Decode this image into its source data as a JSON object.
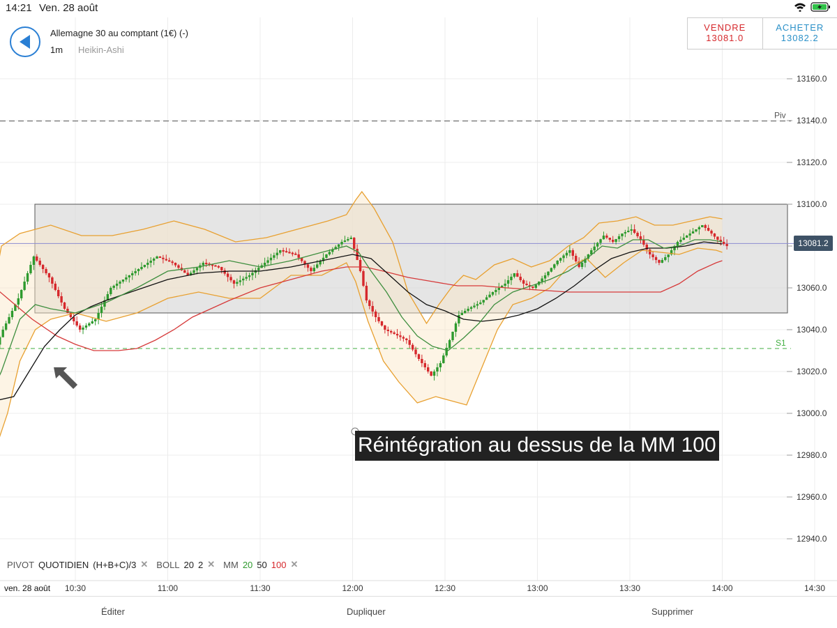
{
  "status_bar": {
    "time": "14:21",
    "date": "Ven. 28 août"
  },
  "header": {
    "instrument": "Allemagne 30 au comptant (1€) (-)",
    "timeframe": "1m",
    "chart_type": "Heikin-Ashi"
  },
  "trade": {
    "sell_label": "VENDRE",
    "sell_price": "13081.0",
    "buy_label": "ACHETER",
    "buy_price": "13082.2"
  },
  "current_price": "13081.2",
  "annotation": "Réintégration au dessus de la MM 100",
  "indicators": {
    "pivot_label": "PIVOT",
    "pivot_period": "QUOTIDIEN",
    "pivot_formula": "(H+B+C)/3",
    "boll_label": "BOLL",
    "boll_p1": "20",
    "boll_p2": "2",
    "mm_label": "MM",
    "mm_p1": "20",
    "mm_p2": "50",
    "mm_p3": "100"
  },
  "bottom_bar": {
    "edit": "Éditer",
    "duplicate": "Dupliquer",
    "delete": "Supprimer"
  },
  "colors": {
    "up": "#2e9a2e",
    "down": "#d6282c",
    "boll": "#e8a030",
    "mm20": "#3e8e3e",
    "mm50": "#111111",
    "mm100": "#d63a3a",
    "box": "#dcdcdc",
    "accent": "#2a7fd4"
  },
  "chart_data": {
    "type": "candlestick",
    "y_ticks": [
      "13160.0",
      "13140.0",
      "13120.0",
      "13100.0",
      "13080.0",
      "13060.0",
      "13040.0",
      "13020.0",
      "13000.0",
      "12980.0",
      "12960.0",
      "12940.0"
    ],
    "x_ticks": [
      "10:30",
      "11:00",
      "11:30",
      "12:00",
      "12:30",
      "13:00",
      "13:30",
      "14:00",
      "14:30"
    ],
    "x_start_label": "ven. 28 août",
    "ylim": [
      12930,
      13170
    ],
    "pivot": {
      "label": "Piv",
      "value": 13139.8
    },
    "s1": {
      "label": "S1",
      "value": 13031
    },
    "range_box": [
      13048,
      13100
    ],
    "price_line": 13081.2,
    "arrow_target": {
      "time_min": 623,
      "value": 13022
    },
    "close_path": [
      [
        600,
        13015
      ],
      [
        607,
        13040
      ],
      [
        612,
        13055
      ],
      [
        617,
        13075
      ],
      [
        622,
        13065
      ],
      [
        627,
        13050
      ],
      [
        632,
        13040
      ],
      [
        637,
        13045
      ],
      [
        642,
        13060
      ],
      [
        647,
        13065
      ],
      [
        652,
        13070
      ],
      [
        657,
        13075
      ],
      [
        662,
        13072
      ],
      [
        667,
        13066
      ],
      [
        672,
        13072
      ],
      [
        677,
        13070
      ],
      [
        682,
        13062
      ],
      [
        687,
        13066
      ],
      [
        692,
        13072
      ],
      [
        697,
        13078
      ],
      [
        702,
        13076
      ],
      [
        707,
        13068
      ],
      [
        712,
        13076
      ],
      [
        717,
        13082
      ],
      [
        720,
        13084
      ],
      [
        723,
        13068
      ],
      [
        725,
        13054
      ],
      [
        728,
        13046
      ],
      [
        731,
        13040
      ],
      [
        734,
        13038
      ],
      [
        738,
        13035
      ],
      [
        742,
        13026
      ],
      [
        746,
        13018
      ],
      [
        749,
        13024
      ],
      [
        752,
        13035
      ],
      [
        755,
        13047
      ],
      [
        758,
        13050
      ],
      [
        762,
        13053
      ],
      [
        766,
        13058
      ],
      [
        770,
        13062
      ],
      [
        773,
        13067
      ],
      [
        776,
        13062
      ],
      [
        779,
        13060
      ],
      [
        783,
        13066
      ],
      [
        787,
        13073
      ],
      [
        791,
        13078
      ],
      [
        794,
        13070
      ],
      [
        798,
        13078
      ],
      [
        802,
        13085
      ],
      [
        805,
        13082
      ],
      [
        808,
        13086
      ],
      [
        811,
        13088
      ],
      [
        814,
        13083
      ],
      [
        817,
        13076
      ],
      [
        820,
        13072
      ],
      [
        823,
        13076
      ],
      [
        826,
        13082
      ],
      [
        830,
        13086
      ],
      [
        834,
        13090
      ],
      [
        837,
        13086
      ],
      [
        839,
        13083
      ],
      [
        842,
        13080
      ]
    ],
    "bollinger_upper": [
      [
        603,
        13055
      ],
      [
        606,
        13080
      ],
      [
        612,
        13086
      ],
      [
        622,
        13090
      ],
      [
        632,
        13085
      ],
      [
        642,
        13085
      ],
      [
        652,
        13088
      ],
      [
        662,
        13092
      ],
      [
        672,
        13088
      ],
      [
        682,
        13082
      ],
      [
        692,
        13084
      ],
      [
        702,
        13088
      ],
      [
        712,
        13092
      ],
      [
        718,
        13095
      ],
      [
        721,
        13102
      ],
      [
        723,
        13106
      ],
      [
        727,
        13098
      ],
      [
        733,
        13082
      ],
      [
        738,
        13058
      ],
      [
        744,
        13043
      ],
      [
        748,
        13052
      ],
      [
        752,
        13060
      ],
      [
        756,
        13066
      ],
      [
        760,
        13064
      ],
      [
        766,
        13071
      ],
      [
        772,
        13074
      ],
      [
        778,
        13070
      ],
      [
        784,
        13073
      ],
      [
        790,
        13080
      ],
      [
        795,
        13084
      ],
      [
        800,
        13091
      ],
      [
        806,
        13092
      ],
      [
        812,
        13094
      ],
      [
        818,
        13090
      ],
      [
        824,
        13090
      ],
      [
        830,
        13092
      ],
      [
        836,
        13094
      ],
      [
        840,
        13093
      ]
    ],
    "bollinger_lower": [
      [
        600,
        12980
      ],
      [
        603,
        12978
      ],
      [
        608,
        13000
      ],
      [
        612,
        13025
      ],
      [
        617,
        13040
      ],
      [
        622,
        13045
      ],
      [
        630,
        13048
      ],
      [
        640,
        13044
      ],
      [
        650,
        13048
      ],
      [
        660,
        13055
      ],
      [
        670,
        13058
      ],
      [
        680,
        13055
      ],
      [
        690,
        13055
      ],
      [
        700,
        13066
      ],
      [
        710,
        13066
      ],
      [
        718,
        13072
      ],
      [
        721,
        13063
      ],
      [
        725,
        13044
      ],
      [
        730,
        13025
      ],
      [
        735,
        13015
      ],
      [
        741,
        13005
      ],
      [
        747,
        13008
      ],
      [
        752,
        13006
      ],
      [
        757,
        13004
      ],
      [
        762,
        13022
      ],
      [
        767,
        13040
      ],
      [
        772,
        13052
      ],
      [
        778,
        13055
      ],
      [
        784,
        13060
      ],
      [
        790,
        13070
      ],
      [
        796,
        13074
      ],
      [
        802,
        13065
      ],
      [
        808,
        13072
      ],
      [
        814,
        13078
      ],
      [
        820,
        13077
      ],
      [
        826,
        13076
      ],
      [
        832,
        13079
      ],
      [
        838,
        13078
      ],
      [
        840,
        13077
      ]
    ],
    "mm20": [
      [
        600,
        13001
      ],
      [
        606,
        13020
      ],
      [
        612,
        13045
      ],
      [
        617,
        13052
      ],
      [
        622,
        13050
      ],
      [
        630,
        13048
      ],
      [
        640,
        13053
      ],
      [
        650,
        13060
      ],
      [
        660,
        13068
      ],
      [
        670,
        13070
      ],
      [
        680,
        13073
      ],
      [
        690,
        13070
      ],
      [
        700,
        13073
      ],
      [
        710,
        13077
      ],
      [
        718,
        13080
      ],
      [
        722,
        13077
      ],
      [
        726,
        13068
      ],
      [
        731,
        13058
      ],
      [
        736,
        13046
      ],
      [
        741,
        13037
      ],
      [
        746,
        13032
      ],
      [
        751,
        13030
      ],
      [
        756,
        13036
      ],
      [
        761,
        13043
      ],
      [
        766,
        13052
      ],
      [
        772,
        13058
      ],
      [
        778,
        13061
      ],
      [
        784,
        13064
      ],
      [
        790,
        13068
      ],
      [
        796,
        13074
      ],
      [
        801,
        13080
      ],
      [
        806,
        13079
      ],
      [
        811,
        13083
      ],
      [
        816,
        13083
      ],
      [
        821,
        13079
      ],
      [
        826,
        13080
      ],
      [
        831,
        13083
      ],
      [
        836,
        13083
      ],
      [
        840,
        13082
      ]
    ],
    "mm50": [
      [
        600,
        13007
      ],
      [
        604,
        13006
      ],
      [
        610,
        13008
      ],
      [
        615,
        13020
      ],
      [
        620,
        13032
      ],
      [
        625,
        13040
      ],
      [
        630,
        13047
      ],
      [
        635,
        13051
      ],
      [
        640,
        13054
      ],
      [
        650,
        13059
      ],
      [
        660,
        13064
      ],
      [
        670,
        13067
      ],
      [
        680,
        13068
      ],
      [
        690,
        13068
      ],
      [
        700,
        13070
      ],
      [
        710,
        13073
      ],
      [
        720,
        13076
      ],
      [
        726,
        13074
      ],
      [
        732,
        13066
      ],
      [
        738,
        13058
      ],
      [
        744,
        13052
      ],
      [
        750,
        13049
      ],
      [
        756,
        13045
      ],
      [
        762,
        13044
      ],
      [
        768,
        13045
      ],
      [
        774,
        13047
      ],
      [
        780,
        13050
      ],
      [
        786,
        13055
      ],
      [
        792,
        13061
      ],
      [
        798,
        13068
      ],
      [
        804,
        13074
      ],
      [
        810,
        13077
      ],
      [
        816,
        13079
      ],
      [
        822,
        13079
      ],
      [
        828,
        13080
      ],
      [
        834,
        13082
      ],
      [
        840,
        13081
      ]
    ],
    "mm100": [
      [
        600,
        13065
      ],
      [
        608,
        13055
      ],
      [
        616,
        13045
      ],
      [
        624,
        13037
      ],
      [
        630,
        13033
      ],
      [
        636,
        13030
      ],
      [
        644,
        13030
      ],
      [
        650,
        13031
      ],
      [
        656,
        13035
      ],
      [
        662,
        13040
      ],
      [
        668,
        13046
      ],
      [
        674,
        13050
      ],
      [
        680,
        13054
      ],
      [
        690,
        13060
      ],
      [
        700,
        13064
      ],
      [
        710,
        13068
      ],
      [
        718,
        13070
      ],
      [
        724,
        13070
      ],
      [
        730,
        13068
      ],
      [
        738,
        13065
      ],
      [
        746,
        13063
      ],
      [
        754,
        13061
      ],
      [
        762,
        13061
      ],
      [
        770,
        13060
      ],
      [
        780,
        13059
      ],
      [
        790,
        13058
      ],
      [
        800,
        13058
      ],
      [
        810,
        13058
      ],
      [
        820,
        13058
      ],
      [
        826,
        13062
      ],
      [
        832,
        13068
      ],
      [
        838,
        13072
      ],
      [
        840,
        13073
      ]
    ]
  }
}
